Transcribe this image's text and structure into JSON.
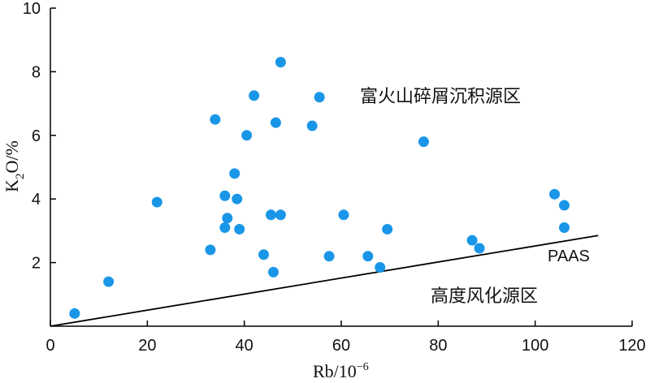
{
  "chart_data": {
    "type": "scatter",
    "xlabel": "Rb/10",
    "xlabel_sup": "−6",
    "ylabel_main": "K",
    "ylabel_sub": "2",
    "ylabel_tail": "O/%",
    "xlim": [
      0,
      120
    ],
    "ylim": [
      0,
      10
    ],
    "xticks": [
      0,
      20,
      40,
      60,
      80,
      100,
      120
    ],
    "yticks": [
      2,
      4,
      6,
      8,
      10
    ],
    "grid": false,
    "point_color": "#1a96e8",
    "series": [
      {
        "x": [
          5,
          12,
          22,
          33,
          34,
          36,
          36,
          36.5,
          38,
          38.5,
          39,
          40.5,
          42,
          44,
          45.5,
          46,
          46.5,
          47.5,
          47.5,
          54,
          55.5,
          57.5,
          60.5,
          65.5,
          68,
          69.5,
          77,
          87,
          88.5,
          104,
          106,
          106
        ],
        "y": [
          0.4,
          1.4,
          3.9,
          2.4,
          6.5,
          4.1,
          3.1,
          3.4,
          4.8,
          4.0,
          3.05,
          6.0,
          7.25,
          2.25,
          3.5,
          1.7,
          6.4,
          8.3,
          3.5,
          6.3,
          7.2,
          2.2,
          3.5,
          2.2,
          1.85,
          3.05,
          5.8,
          2.7,
          2.45,
          4.15,
          3.8,
          3.1
        ]
      }
    ],
    "reference_line": {
      "label": "PAAS",
      "x": [
        0,
        113
      ],
      "y": [
        0,
        2.85
      ]
    },
    "annotations": [
      {
        "id": "volcanic",
        "text": "富火山碎屑沉积源区"
      },
      {
        "id": "weathering",
        "text": "高度风化源区"
      }
    ]
  }
}
